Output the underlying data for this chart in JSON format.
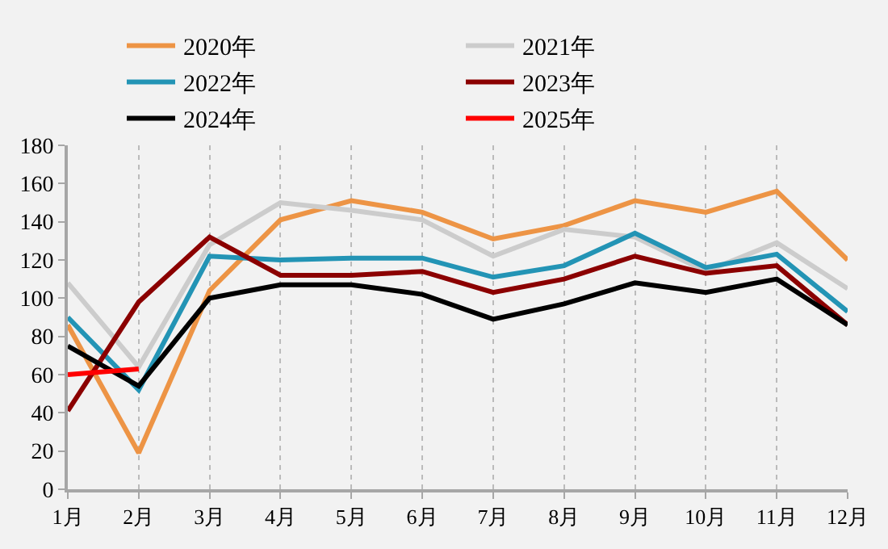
{
  "chart_data": {
    "type": "line",
    "categories": [
      "1月",
      "2月",
      "3月",
      "4月",
      "5月",
      "6月",
      "7月",
      "8月",
      "9月",
      "10月",
      "11月",
      "12月"
    ],
    "series": [
      {
        "name": "2020年",
        "color": "#ed9445",
        "values": [
          86,
          19,
          104,
          141,
          151,
          145,
          131,
          138,
          151,
          145,
          156,
          120
        ]
      },
      {
        "name": "2021年",
        "color": "#cccccc",
        "values": [
          108,
          64,
          128,
          150,
          146,
          141,
          122,
          136,
          132,
          114,
          129,
          105
        ]
      },
      {
        "name": "2022年",
        "color": "#2394b5",
        "values": [
          90,
          52,
          122,
          120,
          121,
          121,
          111,
          117,
          134,
          116,
          123,
          93
        ]
      },
      {
        "name": "2023年",
        "color": "#8b0000",
        "values": [
          41,
          98,
          132,
          112,
          112,
          114,
          103,
          110,
          122,
          113,
          117,
          86
        ]
      },
      {
        "name": "2024年",
        "color": "#000000",
        "values": [
          75,
          54,
          100,
          107,
          107,
          102,
          89,
          97,
          108,
          103,
          110,
          86
        ]
      },
      {
        "name": "2025年",
        "color": "#ff0000",
        "values": [
          60,
          63,
          null,
          null,
          null,
          null,
          null,
          null,
          null,
          null,
          null,
          null
        ]
      }
    ],
    "ylim": [
      0,
      180
    ],
    "yticks": [
      0,
      20,
      40,
      60,
      80,
      100,
      120,
      140,
      160,
      180
    ],
    "grid": "x",
    "legend": "top",
    "marker": "none",
    "line_style": "solid"
  }
}
